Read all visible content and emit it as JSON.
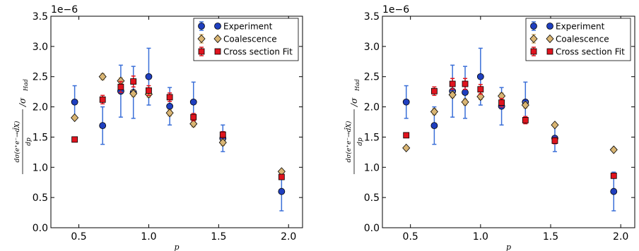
{
  "figure": {
    "chart_data": [
      {
        "type": "scatter",
        "title": "",
        "xlabel": "p",
        "ylabel_main": "dσ(e⁺e⁻→d̄X)",
        "ylabel_denom": "dp",
        "ylabel_div": "/σ",
        "ylabel_sub": "Had",
        "xlim": [
          0.3,
          2.1
        ],
        "ylim": [
          0.0,
          3.5
        ],
        "xticks": [
          0.5,
          1.0,
          1.5,
          2.0
        ],
        "xtick_labels": [
          "0.5",
          "1.0",
          "1.5",
          "2.0"
        ],
        "yticks": [
          0.0,
          0.5,
          1.0,
          1.5,
          2.0,
          2.5,
          3.0,
          3.5
        ],
        "ytick_labels": [
          "0.0",
          "0.5",
          "1.0",
          "1.5",
          "2.0",
          "2.5",
          "3.0",
          "3.5"
        ],
        "y_multiplier": "1e−6",
        "grid": false,
        "legend_position": "top-right",
        "series": [
          {
            "name": "Experiment",
            "marker": "circle",
            "color": "#1f3fbf",
            "ecolor": "#3a6fd8",
            "x": [
              0.47,
              0.67,
              0.8,
              0.89,
              1.0,
              1.15,
              1.32,
              1.53,
              1.95
            ],
            "y": [
              2.08,
              1.69,
              2.26,
              2.24,
              2.5,
              2.01,
              2.08,
              1.48,
              0.6
            ],
            "yerr": [
              0.27,
              0.31,
              0.43,
              0.43,
              0.47,
              0.31,
              0.33,
              0.22,
              0.32
            ]
          },
          {
            "name": "Coalescence",
            "marker": "diamond",
            "color": "#d9b573",
            "x": [
              0.47,
              0.67,
              0.8,
              0.89,
              1.0,
              1.15,
              1.32,
              1.53,
              1.95
            ],
            "y": [
              1.82,
              2.5,
              2.43,
              2.22,
              2.21,
              1.9,
              1.72,
              1.41,
              0.93
            ],
            "yerr": [
              0.0,
              0.05,
              0.05,
              0.05,
              0.05,
              0.05,
              0.05,
              0.05,
              0.0
            ]
          },
          {
            "name": "Cross section Fit",
            "marker": "square",
            "color": "#e0141e",
            "x": [
              0.47,
              0.67,
              0.8,
              0.89,
              1.0,
              1.15,
              1.32,
              1.53,
              1.95
            ],
            "y": [
              1.46,
              2.12,
              2.33,
              2.42,
              2.27,
              2.16,
              1.83,
              1.54,
              0.84
            ],
            "yerr": [
              0.04,
              0.07,
              0.09,
              0.09,
              0.08,
              0.07,
              0.06,
              0.05,
              0.04
            ]
          }
        ]
      },
      {
        "type": "scatter",
        "title": "",
        "xlabel": "p",
        "ylabel_main": "dσ(e⁺e⁻→d̄X)",
        "ylabel_denom": "dp",
        "ylabel_div": "/σ",
        "ylabel_sub": "Had",
        "xlim": [
          0.3,
          2.1
        ],
        "ylim": [
          0.0,
          3.5
        ],
        "xticks": [
          0.5,
          1.0,
          1.5,
          2.0
        ],
        "xtick_labels": [
          "0.5",
          "1.0",
          "1.5",
          "2.0"
        ],
        "yticks": [
          0.0,
          0.5,
          1.0,
          1.5,
          2.0,
          2.5,
          3.0,
          3.5
        ],
        "ytick_labels": [
          "0.0",
          "0.5",
          "1.0",
          "1.5",
          "2.0",
          "2.5",
          "3.0",
          "3.5"
        ],
        "y_multiplier": "1e−6",
        "grid": false,
        "legend_position": "top-right",
        "series": [
          {
            "name": "Experiment",
            "marker": "circle",
            "color": "#1f3fbf",
            "ecolor": "#3a6fd8",
            "x": [
              0.47,
              0.67,
              0.8,
              0.89,
              1.0,
              1.15,
              1.32,
              1.53,
              1.95
            ],
            "y": [
              2.08,
              1.69,
              2.26,
              2.24,
              2.5,
              2.01,
              2.08,
              1.48,
              0.6
            ],
            "yerr": [
              0.27,
              0.31,
              0.43,
              0.43,
              0.47,
              0.31,
              0.33,
              0.22,
              0.32
            ]
          },
          {
            "name": "Coalescence",
            "marker": "diamond",
            "color": "#d9b573",
            "x": [
              0.47,
              0.67,
              0.8,
              0.89,
              1.0,
              1.15,
              1.32,
              1.53,
              1.95
            ],
            "y": [
              1.32,
              1.92,
              2.2,
              2.08,
              2.17,
              2.18,
              2.03,
              1.7,
              1.29
            ],
            "yerr": [
              0.0,
              0.05,
              0.05,
              0.05,
              0.05,
              0.05,
              0.05,
              0.0,
              0.0
            ]
          },
          {
            "name": "Cross section Fit",
            "marker": "square",
            "color": "#e0141e",
            "x": [
              0.47,
              0.67,
              0.8,
              0.89,
              1.0,
              1.15,
              1.32,
              1.53,
              1.95
            ],
            "y": [
              1.53,
              2.26,
              2.38,
              2.38,
              2.29,
              2.07,
              1.78,
              1.44,
              0.86
            ],
            "yerr": [
              0.04,
              0.07,
              0.09,
              0.09,
              0.08,
              0.07,
              0.06,
              0.05,
              0.04
            ]
          }
        ]
      }
    ]
  }
}
